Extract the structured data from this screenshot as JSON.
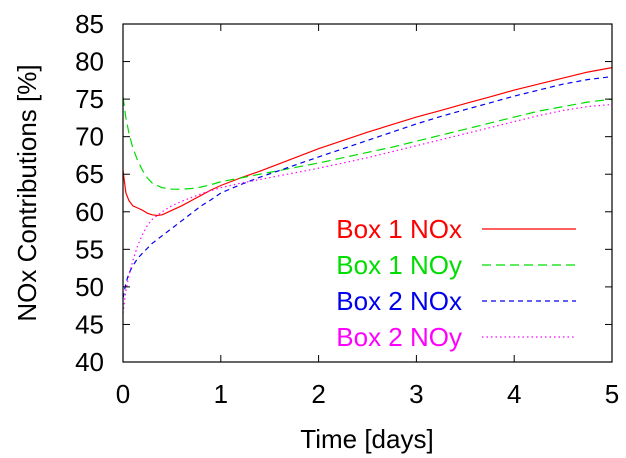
{
  "chart_data": {
    "type": "line",
    "title": "",
    "xlabel": "Time [days]",
    "ylabel": "NOx Contributions [%]",
    "xlim": [
      0,
      5
    ],
    "ylim": [
      40,
      85
    ],
    "xticks": [
      0,
      1,
      2,
      3,
      4,
      5
    ],
    "yticks": [
      40,
      45,
      50,
      55,
      60,
      65,
      70,
      75,
      80,
      85
    ],
    "xtick_labels": [
      "0",
      "1",
      "2",
      "3",
      "4",
      "5"
    ],
    "ytick_labels": [
      "40",
      "45",
      "50",
      "55",
      "60",
      "65",
      "70",
      "75",
      "80",
      "85"
    ],
    "grid": false,
    "legend_position": "bottom-right",
    "series": [
      {
        "name": "Box 1 NOx",
        "color": "#ff0000",
        "dash": "solid",
        "x": [
          0,
          0.03,
          0.06,
          0.1,
          0.15,
          0.2,
          0.25,
          0.3,
          0.35,
          0.4,
          0.5,
          0.6,
          0.7,
          0.8,
          0.9,
          1.0,
          1.2,
          1.4,
          1.6,
          1.8,
          2.0,
          2.25,
          2.5,
          2.75,
          3.0,
          3.25,
          3.5,
          3.75,
          4.0,
          4.25,
          4.5,
          4.75,
          5.0
        ],
        "y": [
          65.5,
          62.5,
          61.5,
          60.8,
          60.5,
          60.2,
          59.8,
          59.6,
          59.5,
          59.6,
          60.2,
          60.8,
          61.5,
          62.2,
          62.9,
          63.5,
          64.5,
          65.4,
          66.4,
          67.4,
          68.4,
          69.5,
          70.6,
          71.6,
          72.6,
          73.5,
          74.4,
          75.3,
          76.2,
          77.0,
          77.8,
          78.6,
          79.2
        ]
      },
      {
        "name": "Box 1 NOy",
        "color": "#00dd00",
        "dash": "long",
        "x": [
          0,
          0.03,
          0.06,
          0.1,
          0.15,
          0.2,
          0.25,
          0.3,
          0.4,
          0.5,
          0.6,
          0.7,
          0.8,
          0.9,
          1.0,
          1.2,
          1.4,
          1.6,
          1.8,
          2.0,
          2.25,
          2.5,
          2.75,
          3.0,
          3.25,
          3.5,
          3.75,
          4.0,
          4.25,
          4.5,
          4.75,
          5.0
        ],
        "y": [
          75.3,
          72.5,
          70.5,
          68.5,
          66.8,
          65.5,
          64.5,
          63.8,
          63.2,
          63.0,
          63.0,
          63.1,
          63.3,
          63.6,
          64.0,
          64.5,
          65.0,
          65.5,
          66.0,
          66.5,
          67.2,
          67.9,
          68.6,
          69.4,
          70.2,
          71.0,
          71.8,
          72.6,
          73.4,
          74.0,
          74.6,
          75.0
        ]
      },
      {
        "name": "Box 2 NOx",
        "color": "#0000ee",
        "dash": "short",
        "x": [
          0,
          0.03,
          0.06,
          0.1,
          0.15,
          0.2,
          0.3,
          0.4,
          0.5,
          0.6,
          0.7,
          0.8,
          0.9,
          1.0,
          1.2,
          1.4,
          1.6,
          1.8,
          2.0,
          2.25,
          2.5,
          2.75,
          3.0,
          3.25,
          3.5,
          3.75,
          4.0,
          4.25,
          4.5,
          4.75,
          5.0
        ],
        "y": [
          48.5,
          50.5,
          51.8,
          52.8,
          53.8,
          54.5,
          55.8,
          56.8,
          57.8,
          58.8,
          59.8,
          60.8,
          61.6,
          62.5,
          63.6,
          64.6,
          65.5,
          66.4,
          67.3,
          68.4,
          69.5,
          70.6,
          71.7,
          72.7,
          73.6,
          74.5,
          75.4,
          76.2,
          77.0,
          77.6,
          78.0
        ]
      },
      {
        "name": "Box 2 NOy",
        "color": "#ff00ff",
        "dash": "dotted",
        "x": [
          0,
          0.03,
          0.06,
          0.1,
          0.15,
          0.2,
          0.25,
          0.3,
          0.4,
          0.5,
          0.6,
          0.7,
          0.8,
          0.9,
          1.0,
          1.2,
          1.4,
          1.6,
          1.8,
          2.0,
          2.25,
          2.5,
          2.75,
          3.0,
          3.25,
          3.5,
          3.75,
          4.0,
          4.25,
          4.5,
          4.75,
          5.0
        ],
        "y": [
          46.5,
          49.5,
          51.5,
          53.5,
          55.5,
          57.0,
          58.2,
          59.0,
          60.0,
          60.8,
          61.4,
          61.9,
          62.4,
          62.8,
          63.2,
          63.8,
          64.3,
          64.8,
          65.3,
          65.8,
          66.5,
          67.2,
          68.0,
          68.8,
          69.6,
          70.4,
          71.2,
          72.0,
          72.8,
          73.5,
          74.0,
          74.3
        ]
      }
    ]
  }
}
